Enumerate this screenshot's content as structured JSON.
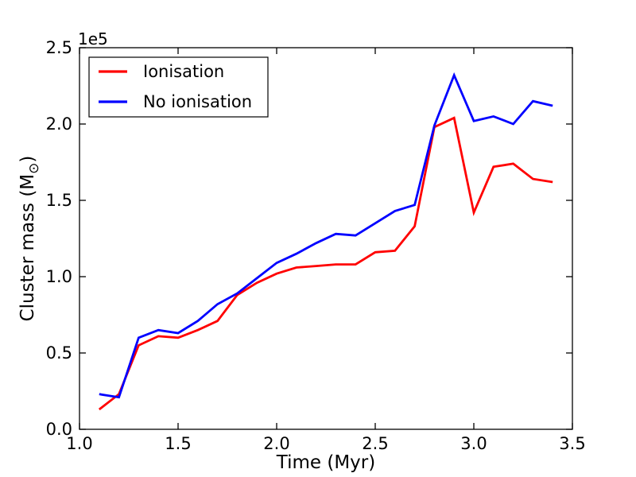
{
  "chart_data": {
    "type": "line",
    "title": "",
    "xlabel": "Time (Myr)",
    "ylabel": "Cluster mass (M⊙)",
    "ylabel_parts": {
      "main": "Cluster mass (M",
      "sub": "⊙",
      "close": ")"
    },
    "y_offset_text": "1e5",
    "xlim": [
      1.0,
      3.5
    ],
    "ylim": [
      0.0,
      2.5
    ],
    "xticks": [
      1.0,
      1.5,
      2.0,
      2.5,
      3.0,
      3.5
    ],
    "xtick_labels": [
      "1.0",
      "1.5",
      "2.0",
      "2.5",
      "3.0",
      "3.5"
    ],
    "yticks": [
      0.0,
      0.5,
      1.0,
      1.5,
      2.0,
      2.5
    ],
    "ytick_labels": [
      "0.0",
      "0.5",
      "1.0",
      "1.5",
      "2.0",
      "2.5"
    ],
    "grid": false,
    "legend_position": "upper left",
    "x": [
      1.1,
      1.2,
      1.3,
      1.4,
      1.5,
      1.6,
      1.7,
      1.8,
      1.9,
      2.0,
      2.1,
      2.2,
      2.3,
      2.4,
      2.5,
      2.6,
      2.7,
      2.8,
      2.9,
      3.0,
      3.1,
      3.2,
      3.3,
      3.4
    ],
    "series": [
      {
        "name": "Ionisation",
        "color": "#ff0000",
        "values_1e5": [
          0.13,
          0.23,
          0.55,
          0.61,
          0.6,
          0.65,
          0.71,
          0.88,
          0.96,
          1.02,
          1.06,
          1.07,
          1.08,
          1.08,
          1.16,
          1.17,
          1.33,
          1.98,
          2.04,
          1.42,
          1.72,
          1.74,
          1.64,
          1.62
        ]
      },
      {
        "name": "No ionisation",
        "color": "#0000ff",
        "values_1e5": [
          0.23,
          0.21,
          0.6,
          0.65,
          0.63,
          0.71,
          0.82,
          0.89,
          0.99,
          1.09,
          1.15,
          1.22,
          1.28,
          1.27,
          1.35,
          1.43,
          1.47,
          1.99,
          2.32,
          2.02,
          2.05,
          2.0,
          2.15,
          2.12
        ]
      }
    ],
    "colors": {
      "axes": "#000000",
      "background": "#ffffff"
    }
  }
}
